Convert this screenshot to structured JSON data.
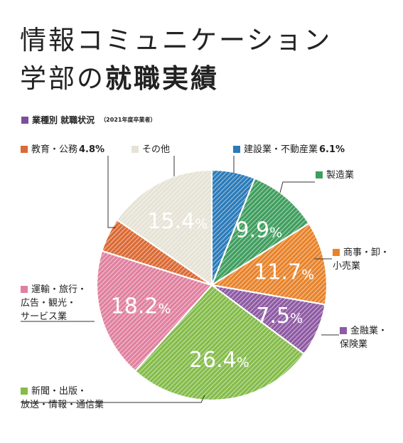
{
  "title": {
    "line1": "情報コミュニケーション",
    "line2_plain": "学部の",
    "line2_bold": "就職実績"
  },
  "subtitle": {
    "text": "業種別 就職状況",
    "note": "（2021年度卒業者）",
    "color": "#7b4f9d"
  },
  "chart_data": {
    "type": "pie",
    "title": "業種別 就職状況",
    "note": "（2021年度卒業者）",
    "unit": "%",
    "slices": [
      {
        "label_lines": [
          "建設業・不動産業"
        ],
        "value": 6.1,
        "pct_label": "6.1%",
        "color": "#2b7bb9",
        "show_inside": false
      },
      {
        "label_lines": [
          "製造業"
        ],
        "value": 9.9,
        "pct_label": "9.9%",
        "color": "#3f9e5e",
        "show_inside": true
      },
      {
        "label_lines": [
          "商事・卸・",
          "小売業"
        ],
        "value": 11.7,
        "pct_label": "11.7%",
        "color": "#e8832a",
        "show_inside": true
      },
      {
        "label_lines": [
          "金融業・",
          "保険業"
        ],
        "value": 7.5,
        "pct_label": "7.5%",
        "color": "#8e5aa3",
        "show_inside": true
      },
      {
        "label_lines": [
          "新聞・出版・",
          "放送・情報・通信業"
        ],
        "value": 26.4,
        "pct_label": "26.4%",
        "color": "#84bc4a",
        "show_inside": true
      },
      {
        "label_lines": [
          "運輸・旅行・",
          "広告・観光・",
          "サービス業"
        ],
        "value": 18.2,
        "pct_label": "18.2%",
        "color": "#e0809f",
        "show_inside": true
      },
      {
        "label_lines": [
          "教育・公務"
        ],
        "value": 4.8,
        "pct_label": "4.8%",
        "color": "#db6a34",
        "show_inside": false
      },
      {
        "label_lines": [
          "その他"
        ],
        "value": 15.4,
        "pct_label": "15.4%",
        "color": "#e6e3d6",
        "show_inside": true
      }
    ]
  }
}
